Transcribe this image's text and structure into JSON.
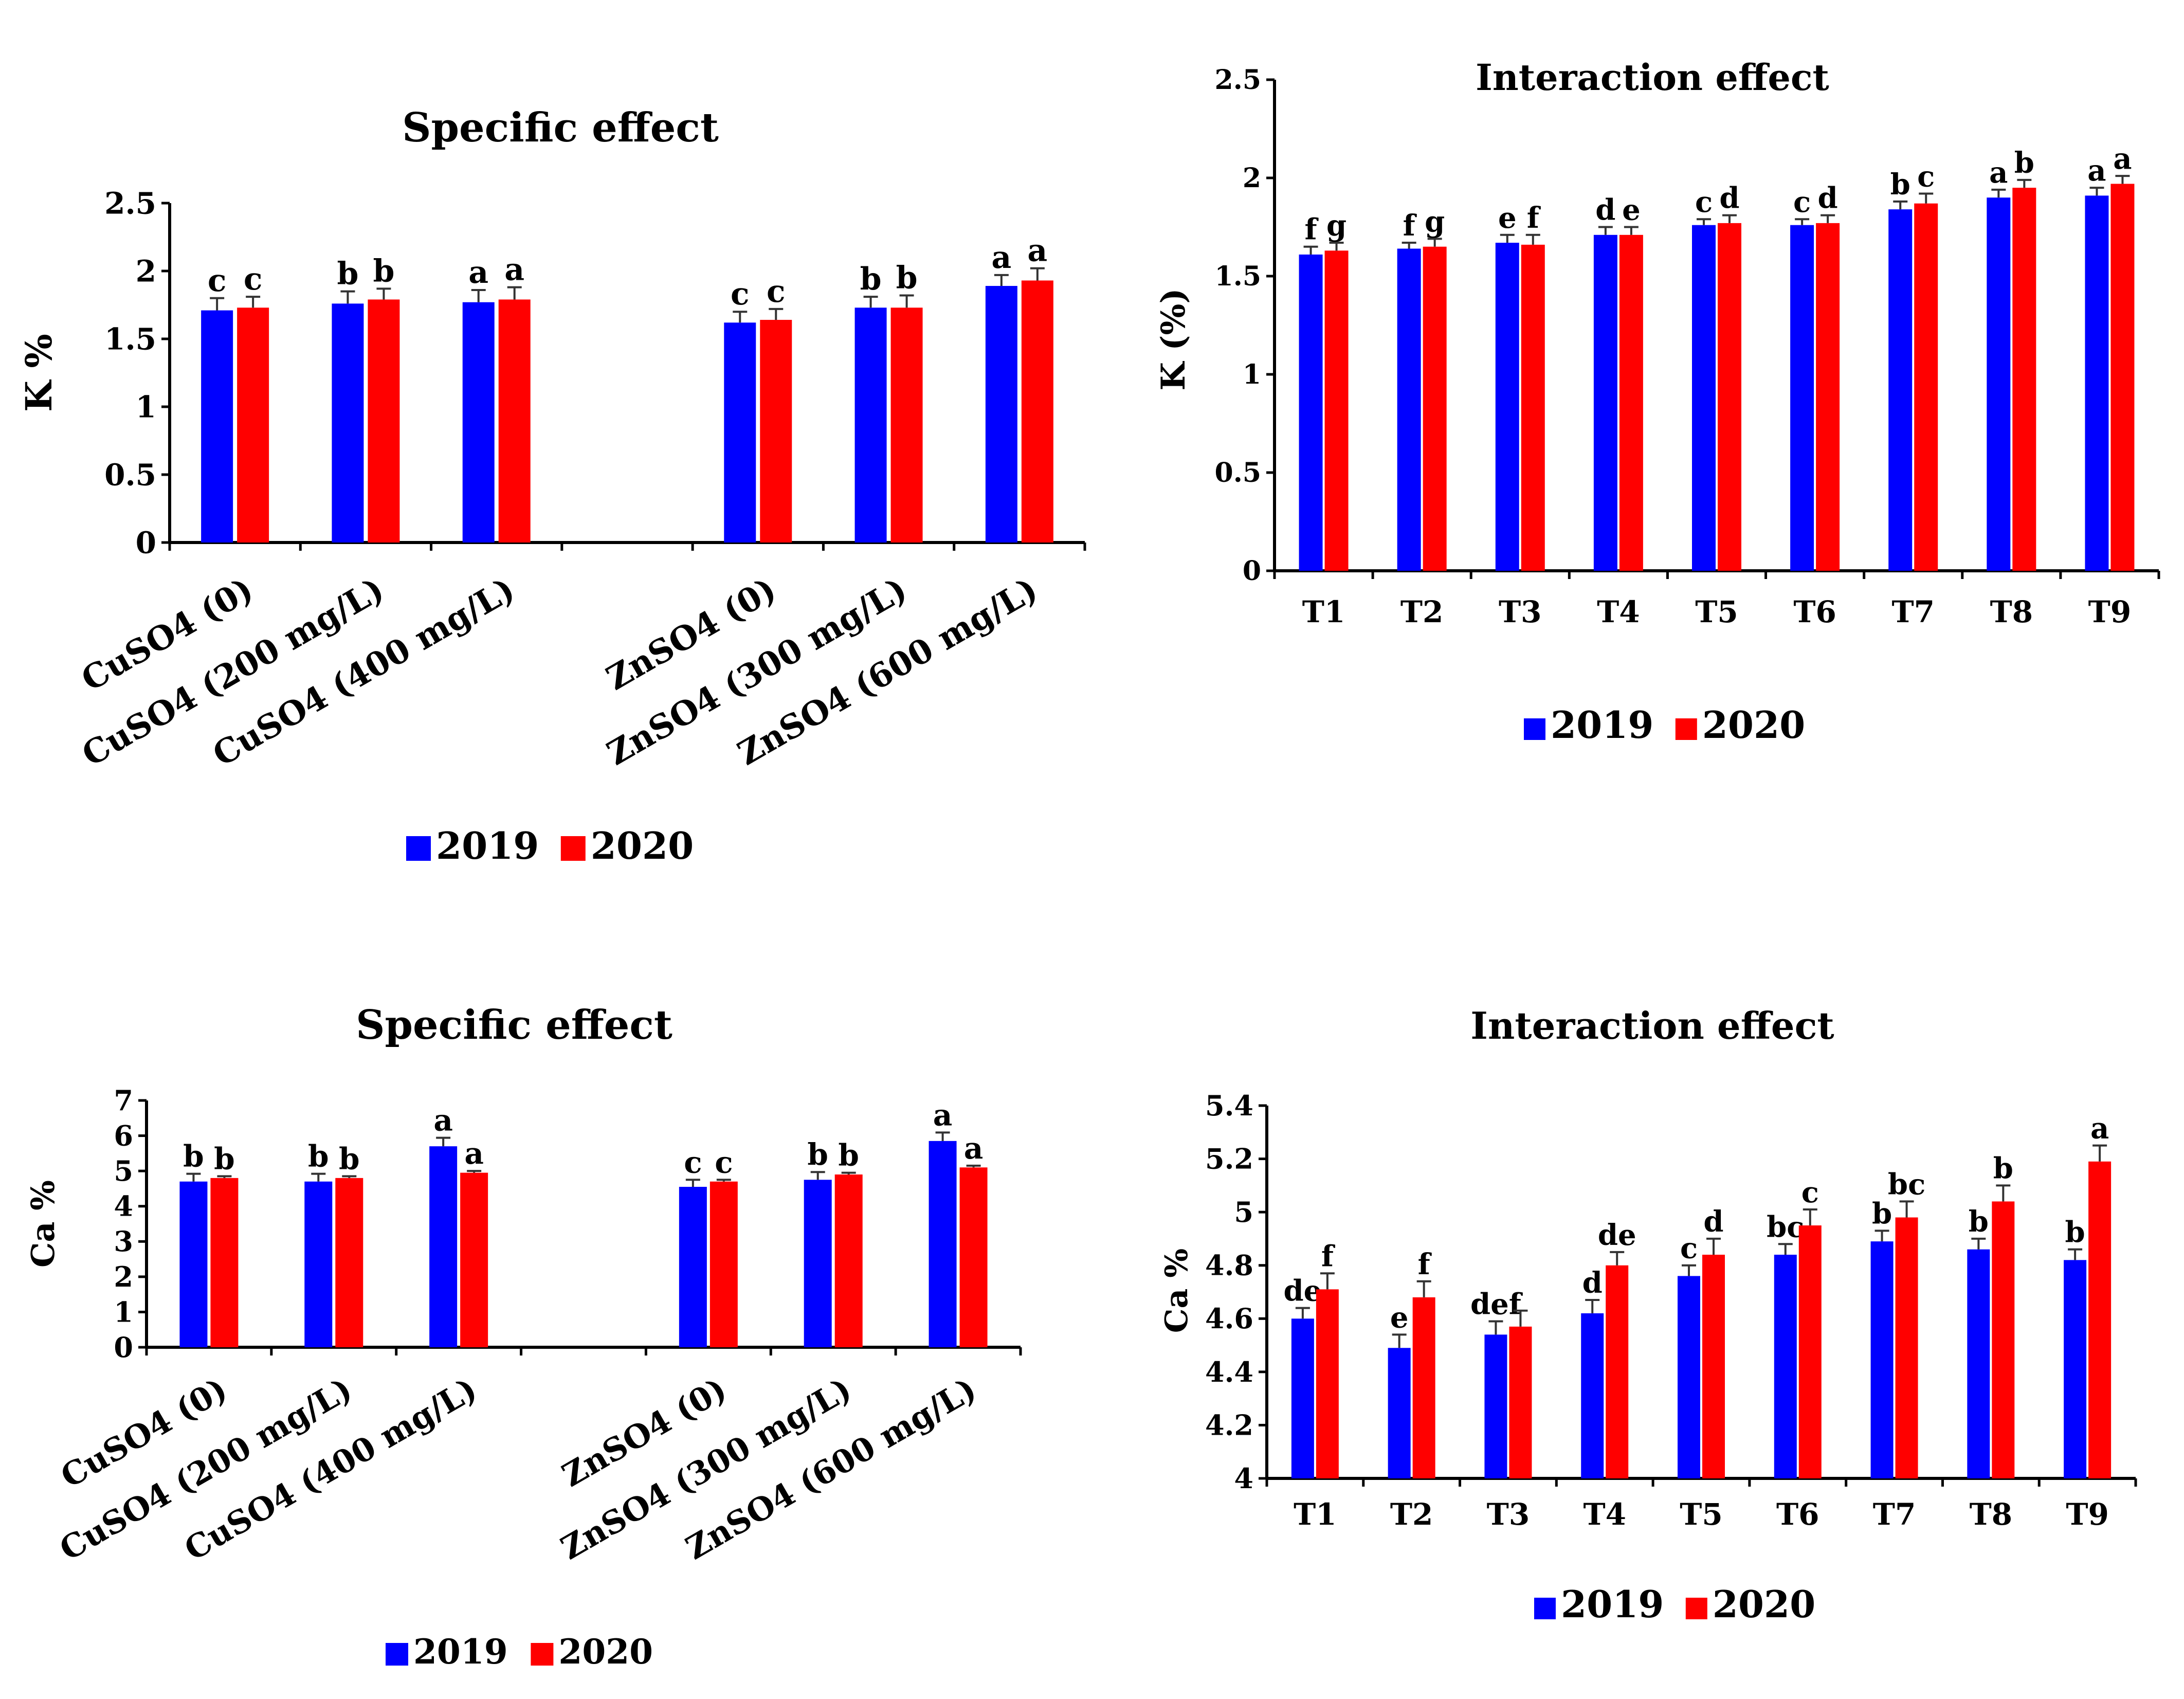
{
  "colors": {
    "y2019": "#0000ff",
    "y2020": "#ff0000",
    "axis": "#000000",
    "error_bar": "#333333"
  },
  "chart_data": [
    {
      "id": "k-specific",
      "type": "bar",
      "title": "Specific effect",
      "xlabel": "",
      "ylabel": "K  %",
      "ylim": [
        0,
        2.5
      ],
      "yticks": [
        "0",
        "0.5",
        "1",
        "1.5",
        "2",
        "2.5"
      ],
      "categories": [
        "CuSO4 (0)",
        "CuSO4 (200 mg/L)",
        "CuSO4 (400 mg/L)",
        "",
        "ZnSO4 (0)",
        "ZnSO4 (300 mg/L)",
        "ZnSO4 (600 mg/L)"
      ],
      "series": [
        {
          "name": "2019",
          "values": [
            1.71,
            1.76,
            1.77,
            null,
            1.62,
            1.73,
            1.89
          ],
          "errors": [
            0.09,
            0.09,
            0.09,
            null,
            0.08,
            0.08,
            0.08
          ],
          "letters": [
            "c",
            "b",
            "a",
            "",
            "c",
            "b",
            "a"
          ]
        },
        {
          "name": "2020",
          "values": [
            1.73,
            1.79,
            1.79,
            null,
            1.64,
            1.73,
            1.93
          ],
          "errors": [
            0.08,
            0.08,
            0.09,
            null,
            0.08,
            0.09,
            0.09
          ],
          "letters": [
            "c",
            "b",
            "a",
            "",
            "c",
            "b",
            "a"
          ]
        }
      ],
      "legend": [
        "2019",
        "2020"
      ],
      "legend_position": "bottom",
      "grid": false
    },
    {
      "id": "k-interaction",
      "type": "bar",
      "title": "Interaction effect",
      "xlabel": "",
      "ylabel": "K (%)",
      "ylim": [
        0,
        2.5
      ],
      "yticks": [
        "0",
        "0.5",
        "1",
        "1.5",
        "2",
        "2.5"
      ],
      "categories": [
        "T1",
        "T2",
        "T3",
        "T4",
        "T5",
        "T6",
        "T7",
        "T8",
        "T9"
      ],
      "series": [
        {
          "name": "2019",
          "values": [
            1.61,
            1.64,
            1.67,
            1.71,
            1.76,
            1.76,
            1.84,
            1.9,
            1.91
          ],
          "errors": [
            0.04,
            0.03,
            0.04,
            0.04,
            0.03,
            0.03,
            0.04,
            0.04,
            0.04
          ],
          "letters": [
            "f",
            "f",
            "e",
            "d",
            "c",
            "c",
            "b",
            "a",
            "a"
          ]
        },
        {
          "name": "2020",
          "values": [
            1.63,
            1.65,
            1.66,
            1.71,
            1.77,
            1.77,
            1.87,
            1.95,
            1.97
          ],
          "errors": [
            0.04,
            0.04,
            0.05,
            0.04,
            0.04,
            0.04,
            0.05,
            0.04,
            0.04
          ],
          "letters": [
            "g",
            "g",
            "f",
            "e",
            "d",
            "d",
            "c",
            "b",
            "a"
          ]
        }
      ],
      "legend": [
        "2019",
        "2020"
      ],
      "legend_position": "bottom",
      "grid": false
    },
    {
      "id": "ca-specific",
      "type": "bar",
      "title": "Specific effect",
      "xlabel": "",
      "ylabel": "Ca  %",
      "ylim": [
        0,
        7
      ],
      "yticks": [
        "0",
        "1",
        "2",
        "3",
        "4",
        "5",
        "6",
        "7"
      ],
      "categories": [
        "CuSO4 (0)",
        "CuSO4 (200 mg/L)",
        "CuSO4 (400 mg/L)",
        "",
        "ZnSO4 (0)",
        "ZnSO4 (300 mg/L)",
        "ZnSO4 (600 mg/L)"
      ],
      "series": [
        {
          "name": "2019",
          "values": [
            4.7,
            4.7,
            5.7,
            null,
            4.55,
            4.75,
            5.85
          ],
          "errors": [
            0.22,
            0.22,
            0.24,
            null,
            0.2,
            0.22,
            0.24
          ],
          "letters": [
            "b",
            "b",
            "a",
            "",
            "c",
            "b",
            "a"
          ]
        },
        {
          "name": "2020",
          "values": [
            4.8,
            4.8,
            4.95,
            null,
            4.7,
            4.9,
            5.1
          ],
          "errors": [
            0.05,
            0.05,
            0.05,
            null,
            0.05,
            0.05,
            0.05
          ],
          "letters": [
            "b",
            "b",
            "a",
            "",
            "c",
            "b",
            "a"
          ]
        }
      ],
      "legend": [
        "2019",
        "2020"
      ],
      "legend_position": "bottom",
      "grid": false
    },
    {
      "id": "ca-interaction",
      "type": "bar",
      "title": "Interaction effect",
      "xlabel": "",
      "ylabel": "Ca %",
      "ylim": [
        4,
        5.4
      ],
      "yticks": [
        "4",
        "4.2",
        "4.4",
        "4.6",
        "4.8",
        "5",
        "5.2",
        "5.4"
      ],
      "categories": [
        "T1",
        "T2",
        "T3",
        "T4",
        "T5",
        "T6",
        "T7",
        "T8",
        "T9"
      ],
      "series": [
        {
          "name": "2019",
          "values": [
            4.6,
            4.49,
            4.54,
            4.62,
            4.76,
            4.84,
            4.89,
            4.86,
            4.82
          ],
          "errors": [
            0.04,
            0.05,
            0.05,
            0.05,
            0.04,
            0.04,
            0.04,
            0.04,
            0.04
          ],
          "letters": [
            "de",
            "e",
            "def",
            "d",
            "c",
            "bc",
            "b",
            "b",
            "b"
          ]
        },
        {
          "name": "2020",
          "values": [
            4.71,
            4.68,
            4.57,
            4.8,
            4.84,
            4.95,
            4.98,
            5.04,
            5.19
          ],
          "errors": [
            0.06,
            0.06,
            0.06,
            0.05,
            0.06,
            0.06,
            0.06,
            0.06,
            0.06
          ],
          "letters": [
            "f",
            "f",
            "",
            "de",
            "d",
            "c",
            "bc",
            "b",
            "a"
          ]
        }
      ],
      "legend": [
        "2019",
        "2020"
      ],
      "legend_position": "bottom",
      "grid": false
    }
  ]
}
